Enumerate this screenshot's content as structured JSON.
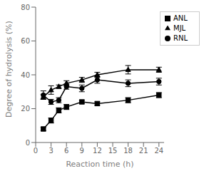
{
  "chart_data": {
    "type": "line",
    "x": [
      1.5,
      3,
      4.5,
      6,
      9,
      12,
      18,
      24
    ],
    "series": [
      {
        "name": "RNL",
        "color": "#000000",
        "marker": "circle",
        "values": [
          28,
          24,
          25,
          33,
          32,
          37,
          35,
          36
        ],
        "errors": [
          2.5,
          1.5,
          1.5,
          1.5,
          2.0,
          2.0,
          2.0,
          2.0
        ]
      },
      {
        "name": "MJL",
        "color": "#000000",
        "marker": "triangle",
        "values": [
          27,
          31,
          33,
          35,
          37,
          40,
          43,
          43
        ],
        "errors": [
          1.5,
          2.5,
          1.0,
          1.5,
          1.5,
          1.5,
          2.5,
          1.5
        ]
      },
      {
        "name": "ANL",
        "color": "#000000",
        "marker": "square",
        "values": [
          8,
          13,
          19,
          21,
          24,
          23,
          25,
          28
        ],
        "errors": [
          1.0,
          1.5,
          1.5,
          1.5,
          1.0,
          1.0,
          1.5,
          1.5
        ]
      }
    ],
    "xlabel": "Reaction time (h)",
    "ylabel": "Degree of hydrolysis (%)",
    "xlim": [
      0,
      25
    ],
    "ylim": [
      0,
      80
    ],
    "xticks": [
      0,
      3,
      6,
      9,
      12,
      15,
      18,
      21,
      24
    ],
    "yticks": [
      0,
      20,
      40,
      60,
      80
    ],
    "grid": false,
    "legend": "upper right"
  }
}
